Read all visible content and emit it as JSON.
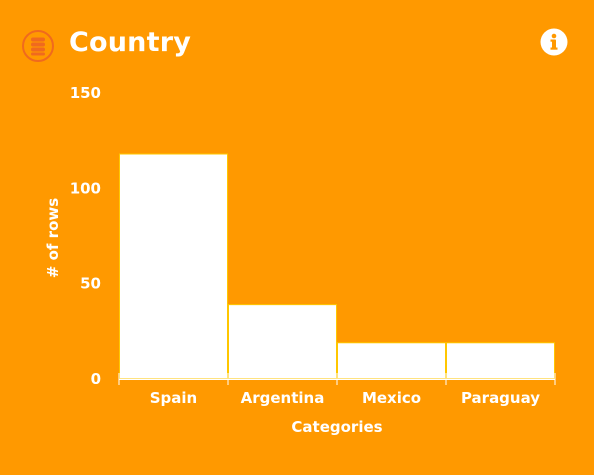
{
  "header": {
    "title": "Country",
    "left_icon": "database-icon",
    "right_icon": "info-icon"
  },
  "colors": {
    "background": "#FF9900",
    "bar_fill": "#FFFFFF",
    "bar_stroke": "#FFC700",
    "icon_accent": "#F06A1E"
  },
  "chart_data": {
    "type": "bar",
    "categories": [
      "Spain",
      "Argentina",
      "Mexico",
      "Paraguay"
    ],
    "values": [
      118,
      39,
      19,
      19
    ],
    "title": "",
    "xlabel": "Categories",
    "ylabel": "# of rows",
    "ylim": [
      0,
      150
    ],
    "yticks": [
      0,
      50,
      100,
      150
    ],
    "grid": false,
    "legend": "none"
  }
}
